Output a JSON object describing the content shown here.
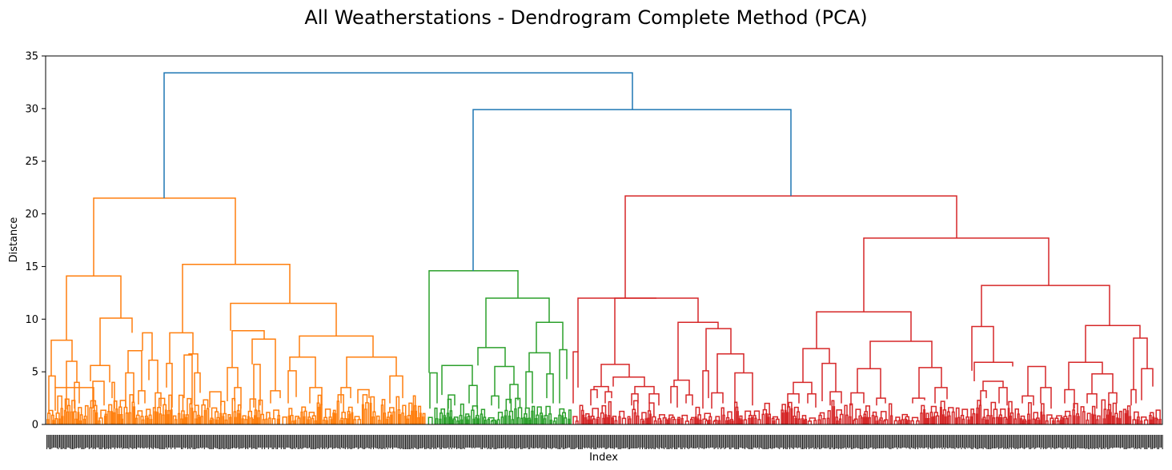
{
  "chart_data": {
    "type": "dendrogram",
    "title": "All Weatherstations - Dendrogram Complete Method (PCA)",
    "xlabel": "Index",
    "ylabel": "Distance",
    "ylim": [
      0,
      35
    ],
    "yticks": [
      0,
      5,
      10,
      15,
      20,
      25,
      30,
      35
    ],
    "grid": false,
    "colors": {
      "orange_cluster": "#ff7f0e",
      "green_cluster": "#2ca02c",
      "red_cluster": "#d62728",
      "link_above_threshold": "#1f77b4"
    },
    "major_merges": [
      {
        "cluster": "blue",
        "height": 33.4
      },
      {
        "cluster": "blue",
        "height": 29.9
      },
      {
        "cluster": "orange",
        "height": 21.5
      },
      {
        "cluster": "red",
        "height": 21.7
      },
      {
        "cluster": "green",
        "height": 14.6
      },
      {
        "cluster": "red",
        "height": 17.7
      },
      {
        "cluster": "orange",
        "height": 15.2
      },
      {
        "cluster": "orange",
        "height": 14.1
      },
      {
        "cluster": "red",
        "height": 13.2
      },
      {
        "cluster": "red",
        "height": 12.0
      },
      {
        "cluster": "green",
        "height": 12.0
      },
      {
        "cluster": "orange",
        "height": 11.5
      },
      {
        "cluster": "red",
        "height": 10.7
      }
    ]
  }
}
